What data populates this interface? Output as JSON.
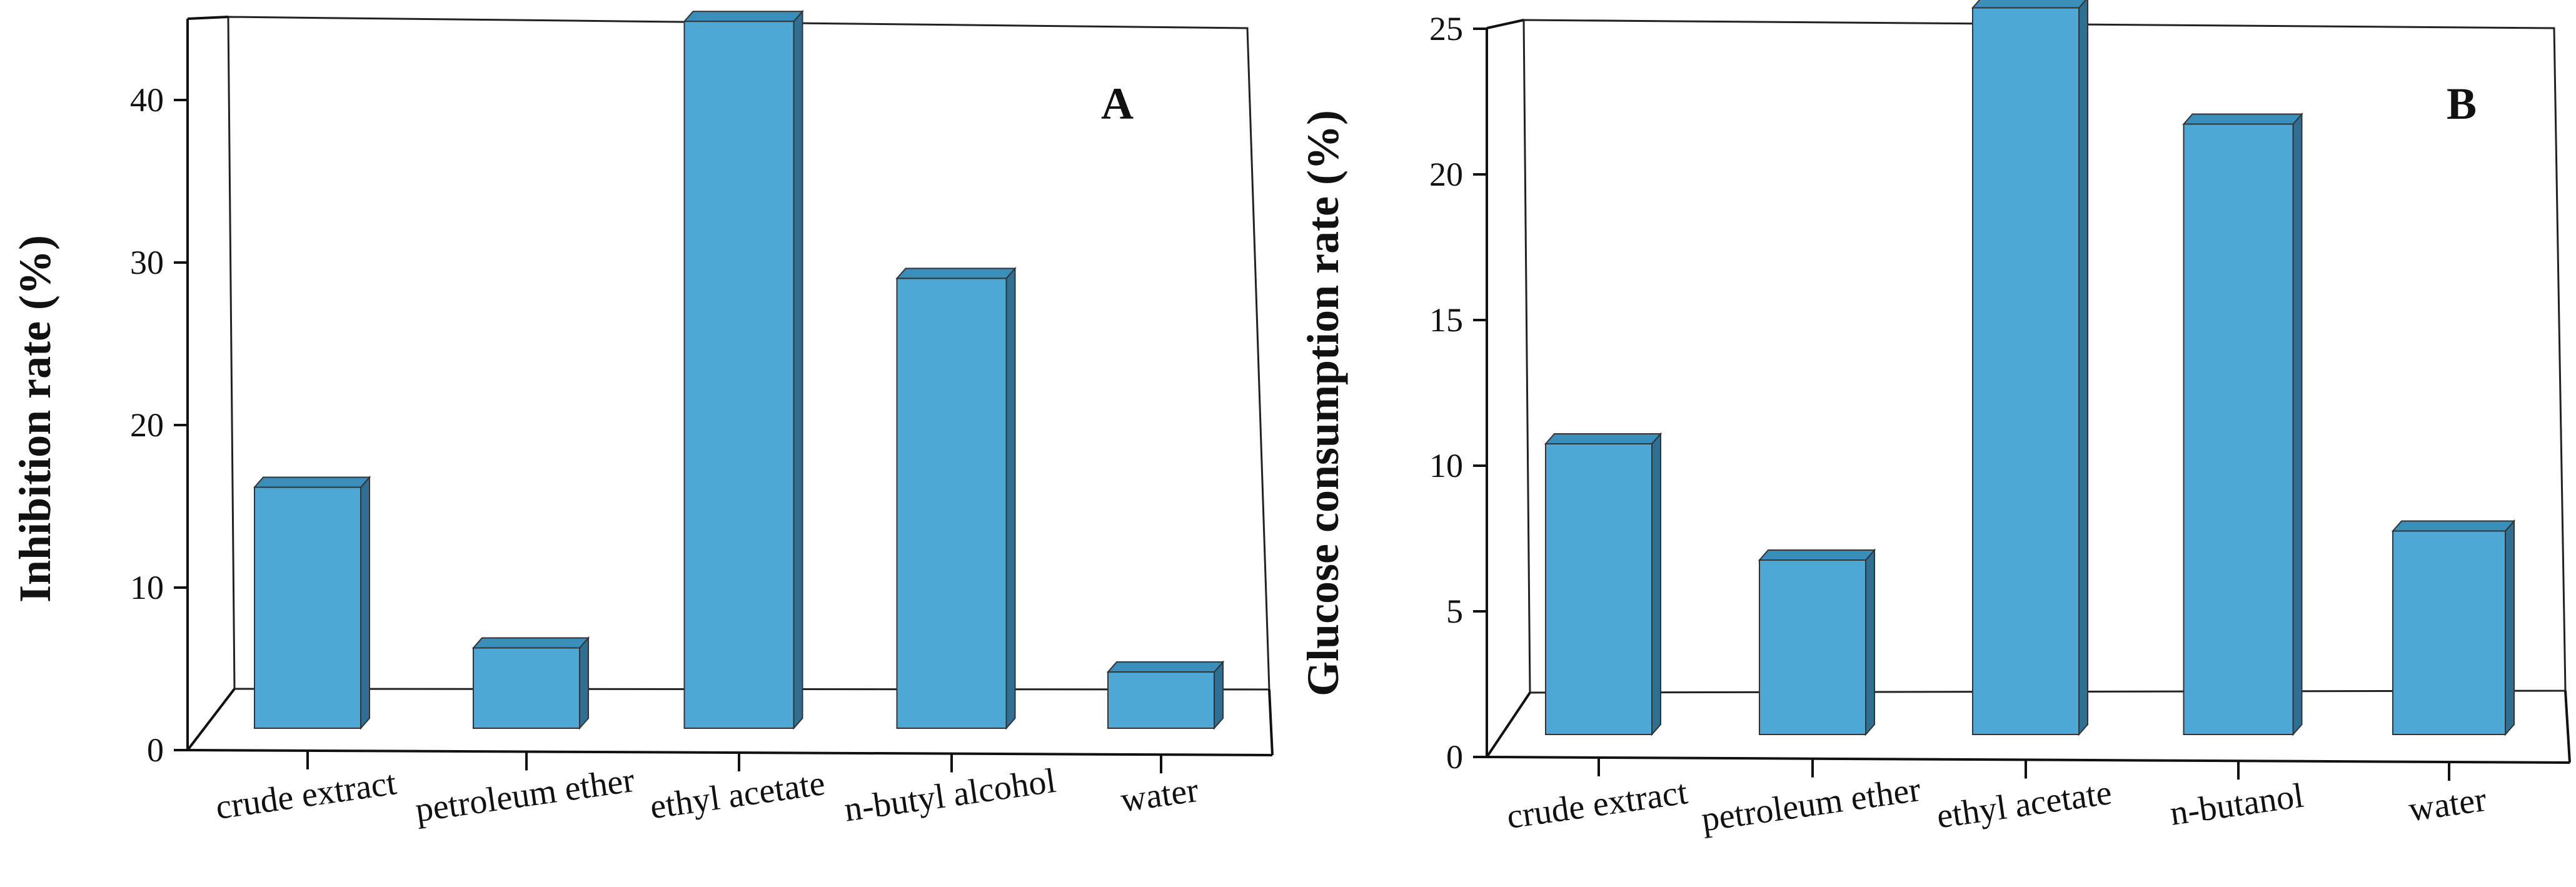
{
  "colors": {
    "bar_front": "#4ea8d6",
    "bar_top": "#3a8fba",
    "bar_side": "#2f6f91",
    "axis": "#111111"
  },
  "chart_data": [
    {
      "type": "bar",
      "panel_label": "A",
      "categories": [
        "crude extract",
        "petroleum ether",
        "ethyl acetate",
        "n-butyl alcohol",
        "water"
      ],
      "values": [
        15,
        5,
        44,
        28,
        3.5
      ],
      "ylabel": "Inhibition rate (%)",
      "xlabel": "",
      "yticks": [
        0,
        10,
        20,
        30,
        40
      ],
      "ylim": [
        0,
        45
      ],
      "grid": false
    },
    {
      "type": "bar",
      "panel_label": "B",
      "categories": [
        "crude extract",
        "petroleum ether",
        "ethyl acetate",
        "n-butanol",
        "water"
      ],
      "values": [
        10,
        6,
        25,
        21,
        7
      ],
      "ylabel": "Glucose consumption rate (%)",
      "xlabel": "",
      "yticks": [
        0,
        5,
        10,
        15,
        20,
        25
      ],
      "ylim": [
        0,
        25
      ],
      "grid": false
    }
  ]
}
